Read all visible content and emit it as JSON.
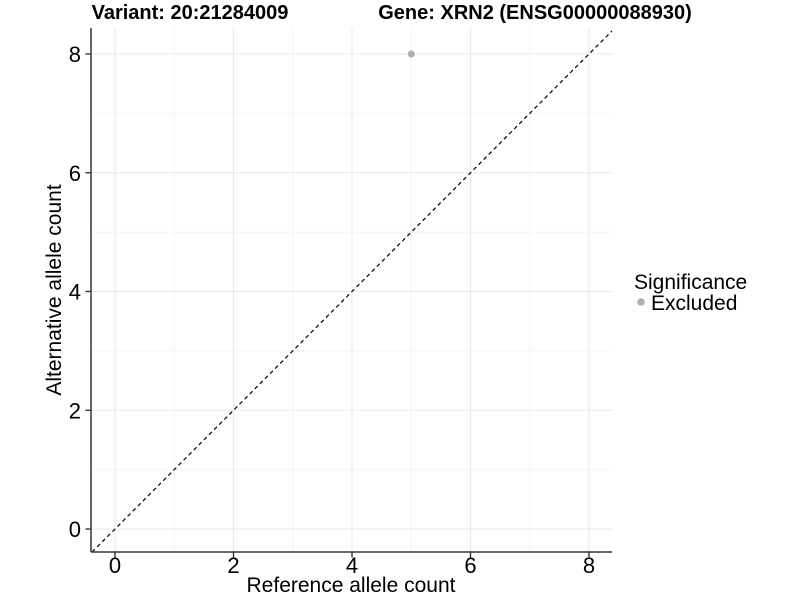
{
  "chart_data": {
    "type": "scatter",
    "title_left": "Variant: 20:21284009",
    "title_right": "Gene: XRN2 (ENSG00000088930)",
    "xlabel": "Reference allele count",
    "ylabel": "Alternative allele count",
    "x_ticks": [
      "0",
      "2",
      "4",
      "6",
      "8"
    ],
    "y_ticks": [
      "0",
      "2",
      "4",
      "6",
      "8"
    ],
    "x_minor_ticks": [
      1,
      3,
      5,
      7
    ],
    "y_minor_ticks": [
      1,
      3,
      5,
      7
    ],
    "xlim": [
      -0.4,
      8.4
    ],
    "ylim": [
      -0.4,
      8.44
    ],
    "grid": "major+minor",
    "identity_line": {
      "slope": 1,
      "intercept": 0,
      "style": "dashed",
      "color": "#000000"
    },
    "series": [
      {
        "name": "Excluded",
        "color": "#b0b0b0",
        "points": [
          {
            "x": 5,
            "y": 8
          }
        ]
      }
    ],
    "legend": {
      "title": "Significance",
      "position": "right",
      "items": [
        {
          "label": "Excluded",
          "color": "#b0b0b0"
        }
      ]
    }
  },
  "colors": {
    "grid_major": "#e9e9e9",
    "grid_minor": "#f4f4f4",
    "axis": "#333333",
    "background": "#ffffff",
    "point": "#b0b0b0"
  }
}
